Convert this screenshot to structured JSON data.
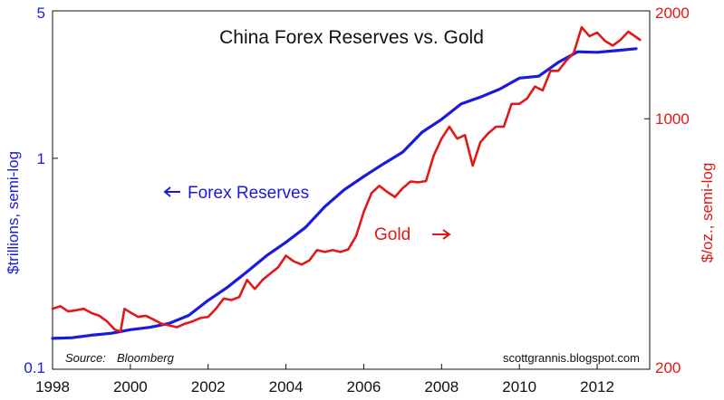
{
  "chart_data": {
    "type": "line",
    "title": "China Forex Reserves vs. Gold",
    "source_label": "Source:",
    "source_name": "Bloomberg",
    "site": "scottgrannis.blogspot.com",
    "x_range": [
      1998,
      2013.35
    ],
    "x_ticks": [
      "1998",
      "2000",
      "2002",
      "2004",
      "2006",
      "2008",
      "2010",
      "2012"
    ],
    "y_left": {
      "label": "$trillions, semi-log",
      "scale": "log",
      "range": [
        0.1,
        5
      ],
      "ticks": [
        "5",
        "1",
        "0.1"
      ],
      "color": "#1a1adf"
    },
    "y_right": {
      "label": "$/oz., semi-log",
      "scale": "log",
      "range": [
        200,
        2000
      ],
      "ticks": [
        "2000",
        "1000",
        "200"
      ],
      "color": "#e01818"
    },
    "annotations": {
      "forex": "Forex Reserves",
      "gold": "Gold"
    },
    "grid": false,
    "series": [
      {
        "name": "Forex Reserves",
        "axis": "left",
        "color": "#1a1adf",
        "points": [
          [
            1998.0,
            0.14
          ],
          [
            1998.5,
            0.141
          ],
          [
            1999.0,
            0.145
          ],
          [
            1999.5,
            0.148
          ],
          [
            2000.0,
            0.154
          ],
          [
            2000.5,
            0.158
          ],
          [
            2001.0,
            0.165
          ],
          [
            2001.5,
            0.18
          ],
          [
            2002.0,
            0.212
          ],
          [
            2002.5,
            0.245
          ],
          [
            2003.0,
            0.29
          ],
          [
            2003.5,
            0.345
          ],
          [
            2004.0,
            0.4
          ],
          [
            2004.5,
            0.47
          ],
          [
            2005.0,
            0.59
          ],
          [
            2005.5,
            0.71
          ],
          [
            2006.0,
            0.82
          ],
          [
            2006.5,
            0.94
          ],
          [
            2007.0,
            1.07
          ],
          [
            2007.5,
            1.33
          ],
          [
            2008.0,
            1.53
          ],
          [
            2008.5,
            1.81
          ],
          [
            2009.0,
            1.95
          ],
          [
            2009.5,
            2.13
          ],
          [
            2010.0,
            2.4
          ],
          [
            2010.5,
            2.45
          ],
          [
            2011.0,
            2.85
          ],
          [
            2011.5,
            3.2
          ],
          [
            2012.0,
            3.18
          ],
          [
            2012.5,
            3.24
          ],
          [
            2013.0,
            3.31
          ]
        ]
      },
      {
        "name": "Gold",
        "axis": "right",
        "color": "#e01818",
        "points": [
          [
            1998.0,
            295
          ],
          [
            1998.2,
            300
          ],
          [
            1998.4,
            290
          ],
          [
            1998.6,
            292
          ],
          [
            1998.8,
            295
          ],
          [
            1999.0,
            287
          ],
          [
            1999.2,
            282
          ],
          [
            1999.4,
            272
          ],
          [
            1999.6,
            258
          ],
          [
            1999.75,
            255
          ],
          [
            1999.85,
            295
          ],
          [
            2000.0,
            288
          ],
          [
            2000.2,
            280
          ],
          [
            2000.4,
            282
          ],
          [
            2000.6,
            275
          ],
          [
            2000.8,
            268
          ],
          [
            2001.0,
            265
          ],
          [
            2001.2,
            262
          ],
          [
            2001.4,
            268
          ],
          [
            2001.6,
            272
          ],
          [
            2001.8,
            278
          ],
          [
            2002.0,
            280
          ],
          [
            2002.2,
            295
          ],
          [
            2002.4,
            315
          ],
          [
            2002.6,
            312
          ],
          [
            2002.8,
            318
          ],
          [
            2003.0,
            355
          ],
          [
            2003.2,
            335
          ],
          [
            2003.4,
            355
          ],
          [
            2003.6,
            370
          ],
          [
            2003.8,
            385
          ],
          [
            2004.0,
            415
          ],
          [
            2004.2,
            400
          ],
          [
            2004.4,
            392
          ],
          [
            2004.6,
            402
          ],
          [
            2004.8,
            430
          ],
          [
            2005.0,
            425
          ],
          [
            2005.2,
            430
          ],
          [
            2005.4,
            425
          ],
          [
            2005.6,
            432
          ],
          [
            2005.8,
            470
          ],
          [
            2006.0,
            550
          ],
          [
            2006.2,
            620
          ],
          [
            2006.4,
            650
          ],
          [
            2006.6,
            625
          ],
          [
            2006.8,
            605
          ],
          [
            2007.0,
            640
          ],
          [
            2007.2,
            668
          ],
          [
            2007.4,
            665
          ],
          [
            2007.6,
            670
          ],
          [
            2007.8,
            790
          ],
          [
            2008.0,
            880
          ],
          [
            2008.2,
            950
          ],
          [
            2008.4,
            880
          ],
          [
            2008.6,
            900
          ],
          [
            2008.8,
            740
          ],
          [
            2009.0,
            860
          ],
          [
            2009.2,
            910
          ],
          [
            2009.4,
            950
          ],
          [
            2009.6,
            950
          ],
          [
            2009.8,
            1100
          ],
          [
            2010.0,
            1100
          ],
          [
            2010.2,
            1140
          ],
          [
            2010.4,
            1230
          ],
          [
            2010.6,
            1200
          ],
          [
            2010.8,
            1360
          ],
          [
            2011.0,
            1360
          ],
          [
            2011.2,
            1450
          ],
          [
            2011.4,
            1530
          ],
          [
            2011.6,
            1800
          ],
          [
            2011.8,
            1700
          ],
          [
            2012.0,
            1740
          ],
          [
            2012.2,
            1650
          ],
          [
            2012.4,
            1600
          ],
          [
            2012.6,
            1660
          ],
          [
            2012.8,
            1750
          ],
          [
            2013.0,
            1690
          ],
          [
            2013.1,
            1660
          ]
        ]
      }
    ]
  }
}
